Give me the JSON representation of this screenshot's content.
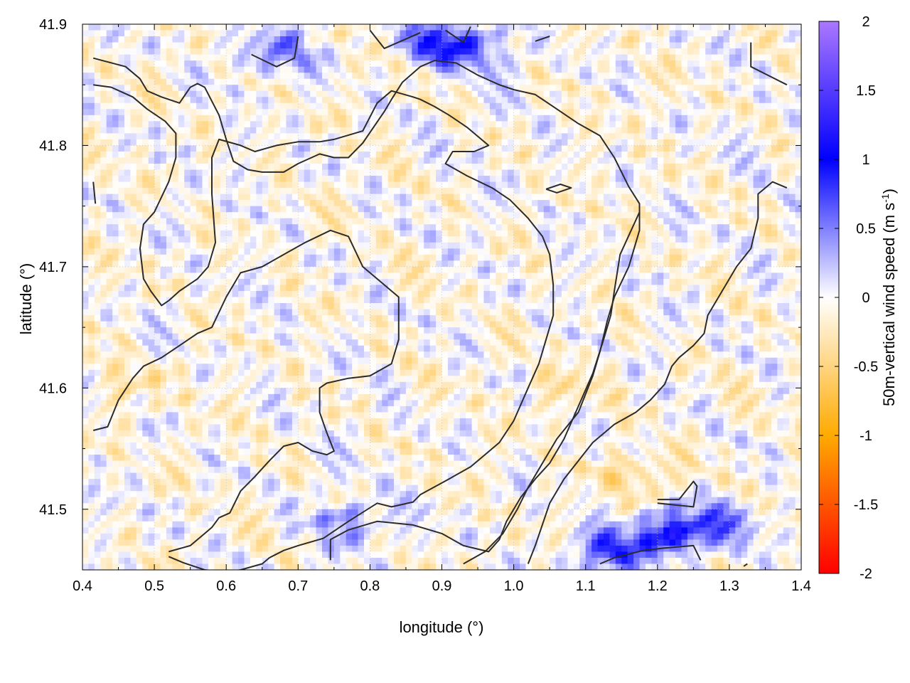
{
  "chart_data": {
    "type": "heatmap",
    "title": "",
    "xlabel": "longitude (°)",
    "ylabel": "latitude (°)",
    "colorbar_label": "50m-vertical wind speed (m s⁻¹)",
    "colorbar_label_parts": {
      "main": "50m-vertical wind speed (m s",
      "sup": "-1",
      "tail": ")"
    },
    "xlim": [
      0.4,
      1.4
    ],
    "ylim": [
      41.45,
      41.9
    ],
    "clim": [
      -2,
      2
    ],
    "x_ticks": [
      "0.4",
      "0.5",
      "0.6",
      "0.7",
      "0.8",
      "0.9",
      "1.0",
      "1.1",
      "1.2",
      "1.3",
      "1.4"
    ],
    "y_ticks": [
      "41.5",
      "41.6",
      "41.7",
      "41.8",
      "41.9"
    ],
    "colorbar_ticks": [
      "2",
      "1.5",
      "1",
      "0.5",
      "0",
      "-0.5",
      "-1",
      "-1.5",
      "-2"
    ],
    "grid": true,
    "colormap": [
      {
        "v": -2.0,
        "color": "#ff0000"
      },
      {
        "v": -1.0,
        "color": "#ffaa00"
      },
      {
        "v": 0.0,
        "color": "#ffffff"
      },
      {
        "v": 1.0,
        "color": "#0000ff"
      },
      {
        "v": 2.0,
        "color": "#aa77ff"
      }
    ],
    "highlights": [
      {
        "lon": 1.22,
        "lat": 41.48,
        "value": 1.1
      },
      {
        "lon": 1.13,
        "lat": 41.465,
        "value": 0.8
      },
      {
        "lon": 0.9,
        "lat": 41.885,
        "value": 0.8
      },
      {
        "lon": 0.67,
        "lat": 41.878,
        "value": 0.6
      },
      {
        "lon": 0.95,
        "lat": 41.878,
        "value": 0.5
      },
      {
        "lon": 0.77,
        "lat": 41.49,
        "value": 0.5
      },
      {
        "lon": 1.3,
        "lat": 41.49,
        "value": 0.5
      },
      {
        "lon": 1.17,
        "lat": 41.53,
        "value": -0.45
      },
      {
        "lon": 1.08,
        "lat": 41.6,
        "value": -0.3
      },
      {
        "lon": 0.46,
        "lat": 41.6,
        "value": -0.25
      }
    ],
    "contours": [
      [
        [
          0.415,
          41.872
        ],
        [
          0.46,
          41.865
        ],
        [
          0.48,
          41.855
        ],
        [
          0.49,
          41.845
        ],
        [
          0.51,
          41.84
        ],
        [
          0.535,
          41.835
        ],
        [
          0.55,
          41.848
        ],
        [
          0.56,
          41.851
        ],
        [
          0.57,
          41.848
        ],
        [
          0.59,
          41.825
        ],
        [
          0.6,
          41.805
        ],
        [
          0.61,
          41.787
        ],
        [
          0.63,
          41.78
        ],
        [
          0.65,
          41.778
        ],
        [
          0.68,
          41.778
        ],
        [
          0.7,
          41.785
        ],
        [
          0.73,
          41.793
        ],
        [
          0.75,
          41.79
        ],
        [
          0.77,
          41.79
        ],
        [
          0.79,
          41.802
        ],
        [
          0.82,
          41.828
        ],
        [
          0.83,
          41.838
        ],
        [
          0.845,
          41.852
        ],
        [
          0.87,
          41.865
        ],
        [
          0.89,
          41.87
        ],
        [
          0.92,
          41.868
        ],
        [
          0.95,
          41.858
        ],
        [
          0.98,
          41.85
        ],
        [
          1.0,
          41.846
        ],
        [
          1.03,
          41.842
        ],
        [
          1.06,
          41.83
        ],
        [
          1.09,
          41.818
        ],
        [
          1.12,
          41.808
        ],
        [
          1.14,
          41.79
        ],
        [
          1.16,
          41.766
        ],
        [
          1.175,
          41.752
        ],
        [
          1.175,
          41.73
        ],
        [
          1.16,
          41.7
        ],
        [
          1.14,
          41.675
        ],
        [
          1.13,
          41.655
        ],
        [
          1.12,
          41.63
        ],
        [
          1.11,
          41.61
        ],
        [
          1.09,
          41.58
        ],
        [
          1.06,
          41.558
        ],
        [
          1.04,
          41.538
        ],
        [
          1.02,
          41.518
        ],
        [
          1.005,
          41.5
        ],
        [
          0.985,
          41.48
        ],
        [
          0.96,
          41.465
        ],
        [
          0.93,
          41.455
        ]
      ],
      [
        [
          0.415,
          41.85
        ],
        [
          0.44,
          41.848
        ],
        [
          0.47,
          41.84
        ],
        [
          0.49,
          41.83
        ],
        [
          0.515,
          41.82
        ],
        [
          0.53,
          41.81
        ],
        [
          0.53,
          41.79
        ],
        [
          0.52,
          41.77
        ],
        [
          0.5,
          41.745
        ],
        [
          0.485,
          41.735
        ],
        [
          0.48,
          41.715
        ],
        [
          0.485,
          41.69
        ],
        [
          0.495,
          41.68
        ],
        [
          0.51,
          41.668
        ],
        [
          0.52,
          41.672
        ],
        [
          0.535,
          41.68
        ],
        [
          0.56,
          41.69
        ],
        [
          0.575,
          41.7
        ],
        [
          0.585,
          41.72
        ],
        [
          0.58,
          41.76
        ],
        [
          0.58,
          41.79
        ],
        [
          0.59,
          41.805
        ],
        [
          0.62,
          41.8
        ],
        [
          0.64,
          41.795
        ],
        [
          0.67,
          41.8
        ],
        [
          0.7,
          41.803
        ],
        [
          0.73,
          41.803
        ],
        [
          0.75,
          41.805
        ],
        [
          0.79,
          41.812
        ],
        [
          0.81,
          41.835
        ],
        [
          0.83,
          41.845
        ],
        [
          0.86,
          41.84
        ],
        [
          0.87,
          41.838
        ],
        [
          0.89,
          41.832
        ],
        [
          0.91,
          41.825
        ],
        [
          0.935,
          41.815
        ],
        [
          0.955,
          41.805
        ],
        [
          0.965,
          41.8
        ],
        [
          0.945,
          41.795
        ],
        [
          0.915,
          41.795
        ],
        [
          0.905,
          41.785
        ],
        [
          0.935,
          41.775
        ],
        [
          0.97,
          41.765
        ],
        [
          0.995,
          41.755
        ],
        [
          1.02,
          41.74
        ],
        [
          1.04,
          41.725
        ],
        [
          1.05,
          41.71
        ],
        [
          1.055,
          41.685
        ],
        [
          1.055,
          41.66
        ],
        [
          1.045,
          41.64
        ],
        [
          1.035,
          41.62
        ],
        [
          1.02,
          41.6
        ],
        [
          1.0,
          41.573
        ],
        [
          0.98,
          41.555
        ],
        [
          0.96,
          41.545
        ],
        [
          0.94,
          41.535
        ],
        [
          0.91,
          41.525
        ],
        [
          0.87,
          41.512
        ],
        [
          0.86,
          41.506
        ],
        [
          0.83,
          41.502
        ],
        [
          0.81,
          41.505
        ],
        [
          0.77,
          41.49
        ],
        [
          0.735,
          41.476
        ],
        [
          0.7,
          41.47
        ],
        [
          0.68,
          41.466
        ],
        [
          0.66,
          41.46
        ],
        [
          0.65,
          41.455
        ],
        [
          0.62,
          41.45
        ],
        [
          0.6,
          41.448
        ],
        [
          0.57,
          41.45
        ],
        [
          0.54,
          41.456
        ],
        [
          0.52,
          41.461
        ]
      ],
      [
        [
          0.415,
          41.565
        ],
        [
          0.435,
          41.568
        ],
        [
          0.45,
          41.59
        ],
        [
          0.47,
          41.608
        ],
        [
          0.485,
          41.618
        ],
        [
          0.51,
          41.625
        ],
        [
          0.535,
          41.635
        ],
        [
          0.56,
          41.645
        ],
        [
          0.58,
          41.65
        ],
        [
          0.6,
          41.675
        ],
        [
          0.62,
          41.695
        ],
        [
          0.65,
          41.7
        ],
        [
          0.68,
          41.71
        ],
        [
          0.71,
          41.72
        ],
        [
          0.745,
          41.73
        ],
        [
          0.77,
          41.725
        ],
        [
          0.79,
          41.7
        ],
        [
          0.81,
          41.69
        ],
        [
          0.83,
          41.68
        ],
        [
          0.84,
          41.675
        ],
        [
          0.84,
          41.64
        ],
        [
          0.83,
          41.62
        ],
        [
          0.8,
          41.61
        ],
        [
          0.77,
          41.608
        ],
        [
          0.74,
          41.604
        ],
        [
          0.73,
          41.6
        ],
        [
          0.73,
          41.58
        ],
        [
          0.74,
          41.563
        ],
        [
          0.75,
          41.548
        ],
        [
          0.74,
          41.545
        ],
        [
          0.72,
          41.548
        ],
        [
          0.7,
          41.555
        ],
        [
          0.68,
          41.552
        ],
        [
          0.66,
          41.54
        ],
        [
          0.64,
          41.527
        ],
        [
          0.62,
          41.515
        ],
        [
          0.605,
          41.497
        ],
        [
          0.59,
          41.493
        ],
        [
          0.58,
          41.485
        ],
        [
          0.57,
          41.48
        ],
        [
          0.55,
          41.47
        ],
        [
          0.52,
          41.465
        ]
      ],
      [
        [
          0.745,
          41.458
        ],
        [
          0.745,
          41.475
        ],
        [
          0.77,
          41.483
        ],
        [
          0.81,
          41.49
        ],
        [
          0.86,
          41.487
        ],
        [
          0.9,
          41.48
        ],
        [
          0.93,
          41.47
        ],
        [
          0.965,
          41.465
        ],
        [
          0.98,
          41.475
        ],
        [
          0.99,
          41.49
        ],
        [
          1.01,
          41.51
        ],
        [
          1.03,
          41.525
        ],
        [
          1.05,
          41.538
        ],
        [
          1.07,
          41.558
        ],
        [
          1.09,
          41.585
        ],
        [
          1.11,
          41.612
        ],
        [
          1.125,
          41.64
        ],
        [
          1.135,
          41.66
        ],
        [
          1.14,
          41.68
        ],
        [
          1.148,
          41.71
        ],
        [
          1.175,
          41.745
        ]
      ],
      [
        [
          1.02,
          41.455
        ],
        [
          1.03,
          41.47
        ],
        [
          1.05,
          41.505
        ],
        [
          1.07,
          41.525
        ],
        [
          1.09,
          41.54
        ],
        [
          1.11,
          41.555
        ],
        [
          1.14,
          41.57
        ],
        [
          1.17,
          41.58
        ],
        [
          1.19,
          41.59
        ],
        [
          1.21,
          41.603
        ],
        [
          1.22,
          41.618
        ],
        [
          1.23,
          41.625
        ],
        [
          1.25,
          41.635
        ],
        [
          1.265,
          41.645
        ],
        [
          1.27,
          41.66
        ],
        [
          1.29,
          41.68
        ],
        [
          1.31,
          41.7
        ],
        [
          1.33,
          41.715
        ],
        [
          1.34,
          41.74
        ],
        [
          1.34,
          41.76
        ],
        [
          1.36,
          41.77
        ],
        [
          1.38,
          41.765
        ]
      ],
      [
        [
          1.12,
          41.455
        ],
        [
          1.14,
          41.46
        ],
        [
          1.18,
          41.466
        ],
        [
          1.21,
          41.468
        ],
        [
          1.25,
          41.47
        ],
        [
          1.26,
          41.458
        ]
      ],
      [
        [
          1.2,
          41.508
        ],
        [
          1.23,
          41.508
        ],
        [
          1.25,
          41.523
        ],
        [
          1.255,
          41.519
        ],
        [
          1.25,
          41.502
        ],
        [
          1.2,
          41.505
        ]
      ],
      [
        [
          1.045,
          41.764
        ],
        [
          1.065,
          41.768
        ],
        [
          1.08,
          41.765
        ],
        [
          1.06,
          41.761
        ],
        [
          1.045,
          41.764
        ]
      ],
      [
        [
          1.33,
          41.885
        ],
        [
          1.33,
          41.865
        ],
        [
          1.36,
          41.856
        ],
        [
          1.38,
          41.85
        ]
      ],
      [
        [
          0.635,
          41.875
        ],
        [
          0.67,
          41.865
        ],
        [
          0.695,
          41.872
        ],
        [
          0.7,
          41.89
        ]
      ],
      [
        [
          0.8,
          41.895
        ],
        [
          0.82,
          41.88
        ],
        [
          0.87,
          41.893
        ]
      ],
      [
        [
          0.905,
          41.895
        ],
        [
          0.93,
          41.885
        ],
        [
          0.94,
          41.898
        ]
      ],
      [
        [
          1.03,
          41.886
        ],
        [
          1.05,
          41.89
        ]
      ],
      [
        [
          0.415,
          41.77
        ],
        [
          0.418,
          41.752
        ]
      ],
      [
        [
          1.32,
          41.453
        ],
        [
          1.325,
          41.455
        ]
      ]
    ]
  }
}
